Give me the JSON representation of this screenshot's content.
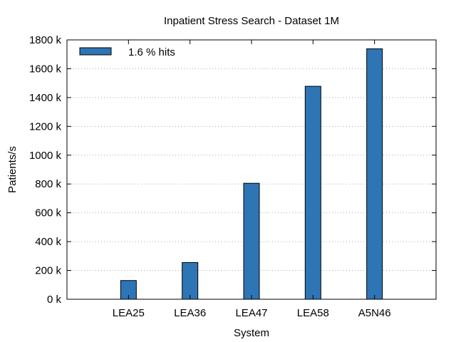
{
  "chart_data": {
    "type": "bar",
    "title": "Inpatient Stress Search - Dataset 1M",
    "xlabel": "System",
    "ylabel": "Patients/s",
    "categories": [
      "LEA25",
      "LEA36",
      "LEA47",
      "LEA58",
      "A5N46"
    ],
    "series": [
      {
        "name": "1.6 % hits",
        "values": [
          130,
          255,
          805,
          1478,
          1738
        ],
        "color": "#2e75b6"
      }
    ],
    "ylim": [
      0,
      1800
    ],
    "yticks": [
      0,
      200,
      400,
      600,
      800,
      1000,
      1200,
      1400,
      1600,
      1800
    ],
    "ytick_labels": [
      "0 k",
      "200 k",
      "400 k",
      "600 k",
      "800 k",
      "1000 k",
      "1200 k",
      "1400 k",
      "1600 k",
      "1800 k"
    ],
    "grid": "horizontal dotted",
    "legend": "top-left"
  }
}
